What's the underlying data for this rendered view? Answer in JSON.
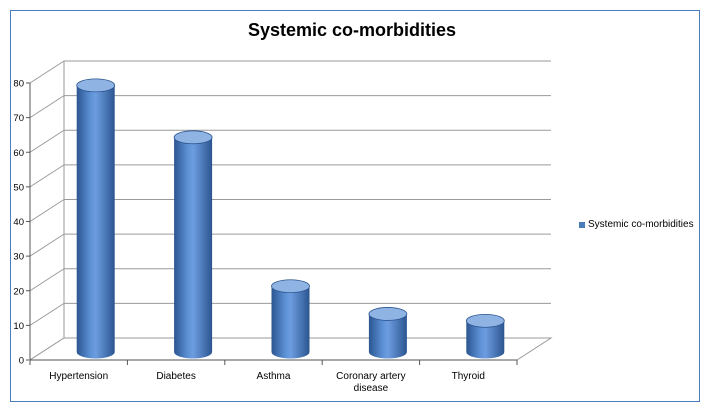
{
  "chart_data": {
    "type": "bar",
    "title": "Systemic co-morbidities",
    "categories": [
      "Hypertension",
      "Diabetes",
      "Asthma",
      "Coronary artery disease",
      "Thyroid"
    ],
    "series": [
      {
        "name": "Systemic co-morbidities",
        "values": [
          77,
          62,
          19,
          11,
          9
        ]
      }
    ],
    "ylim": [
      0,
      80
    ],
    "yticks": [
      "0",
      "10",
      "20",
      "30",
      "40",
      "50",
      "60",
      "70",
      "80"
    ],
    "grid": true,
    "legend_position": "right",
    "bar_style": "3d-cylinder",
    "colors": {
      "bar": "#4a7ebb",
      "bar_dark": "#2b5590",
      "bar_light": "#8fb3e3",
      "grid": "#9a9a9a",
      "frame": "#4a7ebb"
    }
  }
}
